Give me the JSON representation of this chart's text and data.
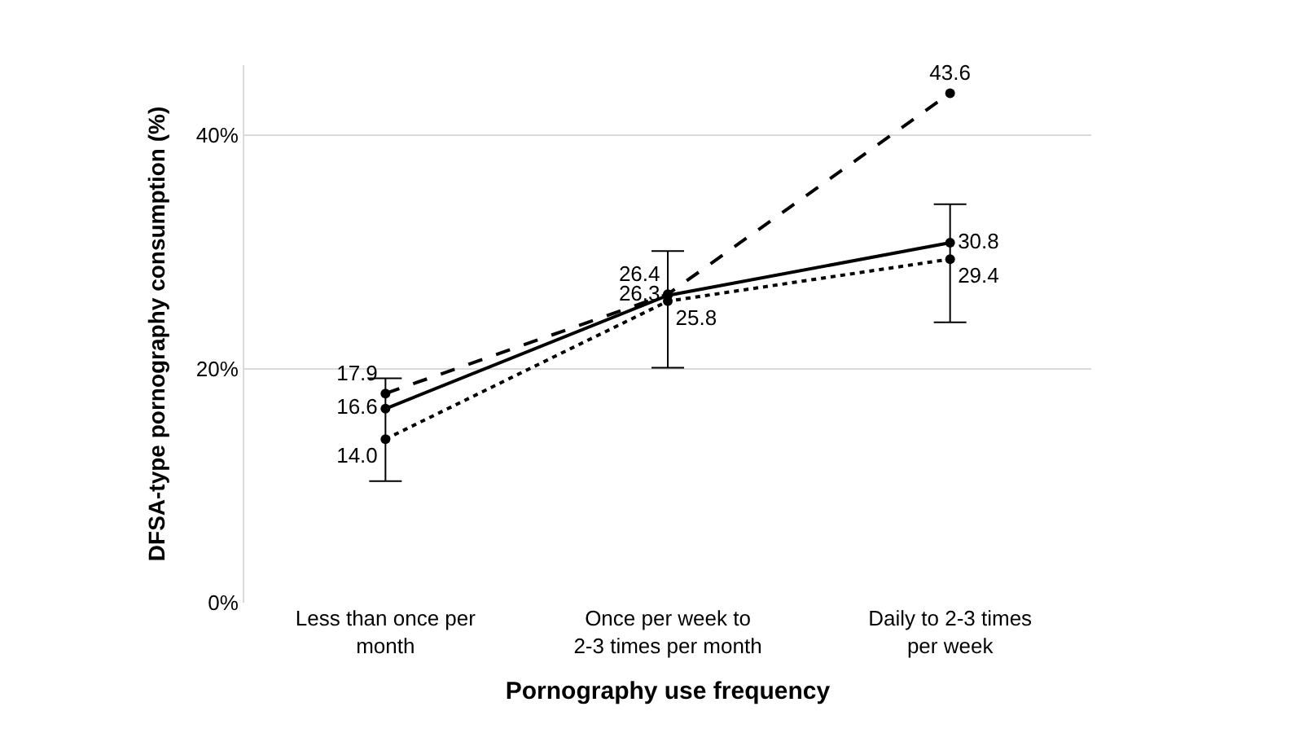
{
  "chart_data": {
    "type": "line",
    "xlabel": "Pornography use frequency",
    "ylabel": "DFSA-type pornography consumption (%)",
    "categories": [
      "Less than once per month",
      "Once per week to 2-3 times per month",
      "Daily to 2-3 times per week"
    ],
    "ylim": [
      0,
      46
    ],
    "yticks": [
      {
        "value": 0,
        "label": "0%"
      },
      {
        "value": 20,
        "label": "20%"
      },
      {
        "value": 40,
        "label": "40%"
      }
    ],
    "grid": "y",
    "legend": false,
    "marker": "circle",
    "series": [
      {
        "color": "#000000",
        "line_style": "dashed",
        "values": [
          17.9,
          26.4,
          43.6
        ],
        "value_labels": [
          "17.9",
          "26.4",
          "43.6"
        ]
      },
      {
        "color": "#000000",
        "line_style": "solid",
        "values": [
          16.6,
          26.3,
          30.8
        ],
        "value_labels": [
          "16.6",
          "26.3",
          "30.8"
        ],
        "errors": [
          [
            10.4,
            19.2
          ],
          [
            20.1,
            30.1
          ],
          [
            24.0,
            34.1
          ]
        ]
      },
      {
        "color": "#000000",
        "line_style": "dotted",
        "values": [
          14.0,
          25.8,
          29.4
        ],
        "value_labels": [
          "14.0",
          "25.8",
          "29.4"
        ]
      }
    ]
  }
}
